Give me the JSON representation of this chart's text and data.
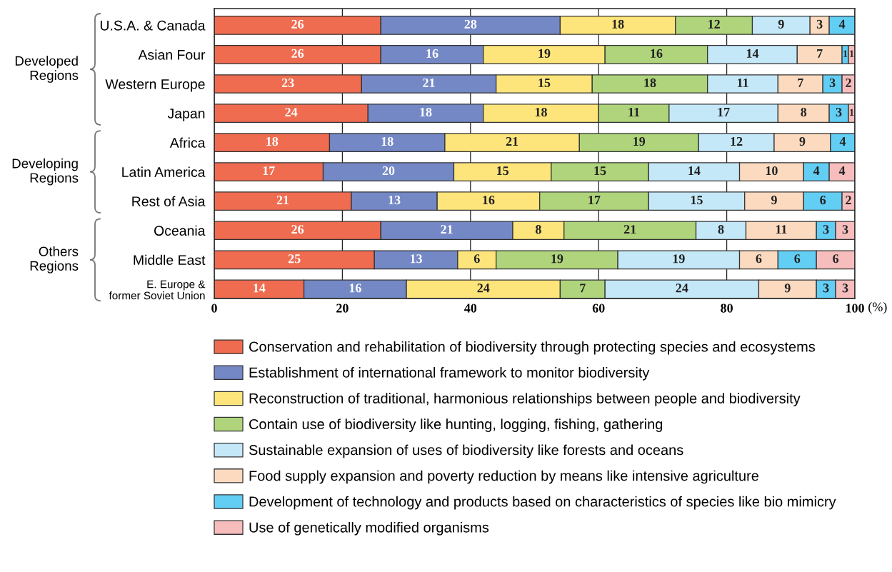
{
  "chart_data": {
    "type": "bar",
    "orientation": "horizontal",
    "stacked": true,
    "categories": [
      "U.S.A. & Canada",
      "Asian Four",
      "Western Europe",
      "Japan",
      "Africa",
      "Latin America",
      "Rest of Asia",
      "Oceania",
      "Middle East",
      "E. Europe &\nformer Soviet Union"
    ],
    "series": [
      {
        "name": "Conservation and rehabilitation of biodiversity through protecting species and ecosystems",
        "color": "#ef6c50",
        "values": [
          26,
          26,
          23,
          24,
          18,
          17,
          21.4,
          26,
          25,
          14
        ],
        "value_labels": [
          "26",
          "26",
          "23",
          "24",
          "18",
          "17",
          "21",
          "26",
          "25",
          "14"
        ]
      },
      {
        "name": "Establishment of international framework to monitor biodiversity",
        "color": "#7488c6",
        "values": [
          28,
          16,
          21,
          18,
          18,
          20.4,
          13.4,
          20.6,
          13,
          16
        ],
        "value_labels": [
          "28",
          "16",
          "21",
          "18",
          "18",
          "20",
          "13",
          "21",
          "13",
          "16"
        ]
      },
      {
        "name": "Reconstruction of traditional, harmonious relationships between people and biodiversity",
        "color": "#fee57b",
        "values": [
          18,
          19,
          15,
          18,
          21,
          15.2,
          16,
          8,
          6,
          24
        ],
        "value_labels": [
          "18",
          "19",
          "15",
          "18",
          "21",
          "15",
          "16",
          "8",
          "6",
          "24"
        ]
      },
      {
        "name": "Contain use of biodiversity like hunting, logging, fishing, gathering",
        "color": "#afd47b",
        "values": [
          12,
          16,
          18,
          11,
          18.6,
          15.2,
          17,
          20.6,
          19,
          7
        ],
        "value_labels": [
          "12",
          "16",
          "18",
          "11",
          "19",
          "15",
          "17",
          "21",
          "19",
          "7"
        ]
      },
      {
        "name": "Sustainable expansion of uses of biodiversity like forests and oceans",
        "color": "#c5e8f8",
        "values": [
          9,
          14,
          11,
          17,
          11.8,
          14.2,
          15,
          7.8,
          19,
          24
        ],
        "value_labels": [
          "9",
          "14",
          "11",
          "17",
          "12",
          "14",
          "15",
          "8",
          "19",
          "24"
        ]
      },
      {
        "name": "Food supply expansion and poverty reduction by means like intensive agriculture",
        "color": "#fcdac0",
        "values": [
          3,
          7,
          7,
          8,
          8.8,
          10,
          9.2,
          11,
          6,
          9
        ],
        "value_labels": [
          "3",
          "7",
          "7",
          "8",
          "9",
          "10",
          "9",
          "11",
          "6",
          "9"
        ]
      },
      {
        "name": "Development of technology and products based on characteristics of species like bio mimicry",
        "color": "#62cef4",
        "values": [
          4,
          1,
          3,
          3,
          3.8,
          4,
          6,
          3,
          6,
          3
        ],
        "value_labels": [
          "4",
          "1",
          "3",
          "3",
          "4",
          "4",
          "6",
          "3",
          "6",
          "3"
        ]
      },
      {
        "name": "Use of genetically modified organisms",
        "color": "#f6bdbc",
        "values": [
          null,
          1,
          2,
          1,
          null,
          4,
          2,
          3,
          6,
          3
        ],
        "value_labels": [
          null,
          "1",
          "2",
          "1",
          null,
          "4",
          "2",
          "3",
          "6",
          "3"
        ]
      }
    ],
    "xlim": [
      0,
      100
    ],
    "xticks": [
      0,
      20,
      40,
      60,
      80,
      100
    ],
    "xlabel": "(%)",
    "grid": "x",
    "legend": "bottom",
    "annotations": [
      "Developed Regions",
      "Developing Regions",
      "Others Regions"
    ]
  }
}
